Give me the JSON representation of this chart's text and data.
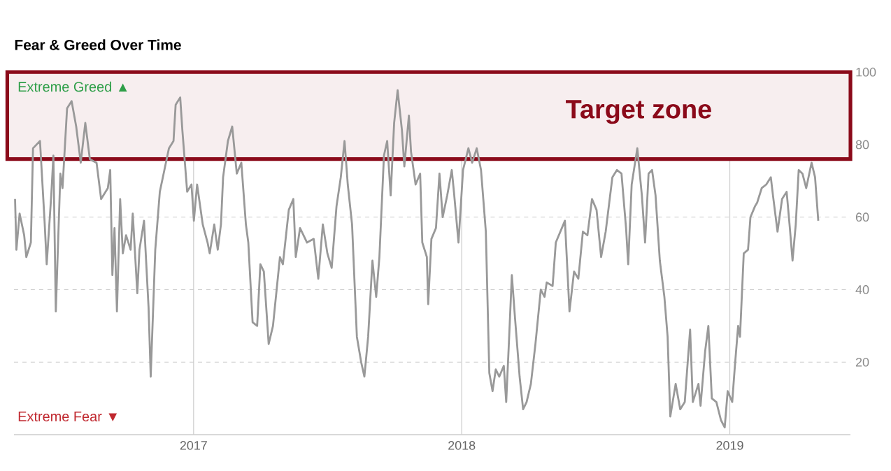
{
  "chart_data": {
    "type": "line",
    "title": "Fear & Greed Over Time",
    "annotations": [
      "Extreme Greed ▲",
      "Extreme Fear ▼"
    ],
    "xlim": [
      2016.33,
      2019.45
    ],
    "xticks": [
      2017,
      2018,
      2019
    ],
    "ylim": [
      0,
      100
    ],
    "yticks": [
      20,
      40,
      60,
      80,
      100
    ],
    "grid": true,
    "bands": [
      {
        "axis": "y",
        "from": 76,
        "to": 100,
        "label": "Target zone",
        "color": "#8b0a1a"
      }
    ],
    "series": [
      {
        "color": "#999999",
        "x": [
          2016.334,
          2016.339,
          2016.351,
          2016.368,
          2016.376,
          2016.393,
          2016.401,
          2016.427,
          2016.444,
          2016.452,
          2016.469,
          2016.477,
          2016.486,
          2016.503,
          2016.511,
          2016.528,
          2016.545,
          2016.562,
          2016.579,
          2016.596,
          2016.613,
          2016.638,
          2016.655,
          2016.68,
          2016.689,
          2016.697,
          2016.705,
          2016.714,
          2016.726,
          2016.736,
          2016.748,
          2016.765,
          2016.773,
          2016.79,
          2016.798,
          2016.815,
          2016.832,
          2016.84,
          2016.857,
          2016.874,
          2016.891,
          2016.908,
          2016.925,
          2016.933,
          2016.95,
          2016.958,
          2016.976,
          2016.992,
          2017.001,
          2017.013,
          2017.034,
          2017.052,
          2017.06,
          2017.077,
          2017.09,
          2017.102,
          2017.11,
          2017.128,
          2017.144,
          2017.161,
          2017.178,
          2017.195,
          2017.204,
          2017.22,
          2017.237,
          2017.249,
          2017.262,
          2017.28,
          2017.296,
          2017.322,
          2017.333,
          2017.355,
          2017.372,
          2017.381,
          2017.397,
          2017.423,
          2017.448,
          2017.465,
          2017.482,
          2017.499,
          2017.515,
          2017.533,
          2017.549,
          2017.563,
          2017.575,
          2017.591,
          2017.609,
          2017.625,
          2017.637,
          2017.651,
          2017.667,
          2017.681,
          2017.693,
          2017.71,
          2017.722,
          2017.735,
          2017.748,
          2017.761,
          2017.777,
          2017.786,
          2017.803,
          2017.811,
          2017.828,
          2017.845,
          2017.853,
          2017.87,
          2017.875,
          2017.887,
          2017.904,
          2017.917,
          2017.929,
          2017.946,
          2017.963,
          2017.971,
          2017.988,
          2018.005,
          2018.025,
          2018.039,
          2018.056,
          2018.072,
          2018.09,
          2018.103,
          2018.115,
          2018.127,
          2018.14,
          2018.157,
          2018.166,
          2018.177,
          2018.187,
          2018.199,
          2018.216,
          2018.229,
          2018.242,
          2018.258,
          2018.275,
          2018.295,
          2018.309,
          2018.317,
          2018.339,
          2018.351,
          2018.368,
          2018.385,
          2018.402,
          2018.419,
          2018.435,
          2018.452,
          2018.469,
          2018.486,
          2018.503,
          2018.52,
          2018.537,
          2018.562,
          2018.579,
          2018.596,
          2018.613,
          2018.621,
          2018.634,
          2018.655,
          2018.672,
          2018.684,
          2018.697,
          2018.71,
          2018.723,
          2018.739,
          2018.756,
          2018.768,
          2018.778,
          2018.798,
          2018.815,
          2018.832,
          2018.852,
          2018.862,
          2018.883,
          2018.891,
          2018.908,
          2018.92,
          2018.933,
          2018.95,
          2018.967,
          2018.981,
          2018.992,
          2019.009,
          2019.018,
          2019.031,
          2019.038,
          2019.052,
          2019.068,
          2019.077,
          2019.094,
          2019.102,
          2019.119,
          2019.136,
          2019.153,
          2019.161,
          2019.178,
          2019.195,
          2019.212,
          2019.224,
          2019.234,
          2019.246,
          2019.257,
          2019.271,
          2019.285,
          2019.305,
          2019.318,
          2019.33
        ],
        "values": [
          65,
          51,
          61,
          55,
          49,
          53,
          79,
          81,
          59,
          47,
          66,
          77,
          34,
          72,
          68,
          90,
          92,
          85,
          75,
          86,
          76,
          75,
          65,
          68,
          73,
          44,
          57,
          34,
          65,
          50,
          55,
          51,
          61,
          39,
          51,
          59,
          35,
          16,
          51,
          67,
          73,
          79,
          81,
          91,
          93,
          84,
          67,
          69,
          59,
          69,
          58,
          53,
          50,
          58,
          51,
          58,
          71,
          81,
          85,
          72,
          75,
          58,
          53,
          31,
          30,
          47,
          45,
          25,
          30,
          49,
          47,
          62,
          65,
          49,
          57,
          53,
          54,
          43,
          58,
          50,
          46,
          63,
          71,
          81,
          69,
          58,
          27,
          20,
          16,
          27,
          48,
          38,
          49,
          77,
          81,
          66,
          86,
          95,
          84,
          74,
          88,
          78,
          69,
          72,
          53,
          49,
          36,
          54,
          57,
          72,
          60,
          66,
          73,
          67,
          53,
          73,
          79,
          75,
          79,
          73,
          56,
          17,
          12,
          18,
          16,
          19,
          9,
          27,
          44,
          32,
          16,
          7,
          9,
          14,
          25,
          40,
          38,
          42,
          41,
          53,
          56,
          59,
          34,
          45,
          43,
          56,
          55,
          65,
          62,
          49,
          56,
          71,
          73,
          72,
          57,
          47,
          69,
          79,
          66,
          53,
          72,
          73,
          66,
          48,
          38,
          27,
          5,
          14,
          7,
          9,
          29,
          9,
          14,
          8,
          23,
          30,
          10,
          9,
          4,
          2,
          12,
          9,
          18,
          30,
          27,
          50,
          51,
          60,
          63,
          64,
          68,
          69,
          71,
          66,
          56,
          65,
          67,
          57,
          48,
          58,
          73,
          72,
          68,
          75,
          71,
          59
        ]
      }
    ]
  }
}
